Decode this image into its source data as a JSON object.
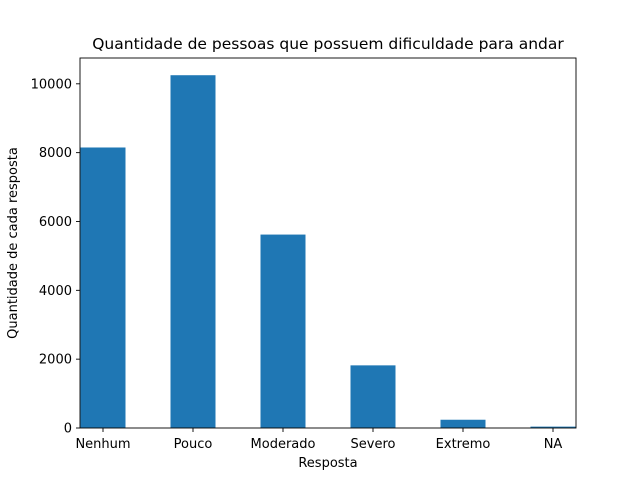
{
  "chart_data": {
    "type": "bar",
    "title": "Quantidade de pessoas que possuem dificuldade para andar",
    "xlabel": "Resposta",
    "ylabel": "Quantidade de cada resposta",
    "categories": [
      "Nenhum",
      "Pouco",
      "Moderado",
      "Severo",
      "Extremo",
      "NA"
    ],
    "values": [
      8150,
      10250,
      5620,
      1820,
      240,
      40
    ],
    "ylim": [
      0,
      10750
    ],
    "yticks": [
      0,
      2000,
      4000,
      6000,
      8000,
      10000
    ],
    "grid": false,
    "legend": "none",
    "bar_color": "#1f77b4"
  }
}
